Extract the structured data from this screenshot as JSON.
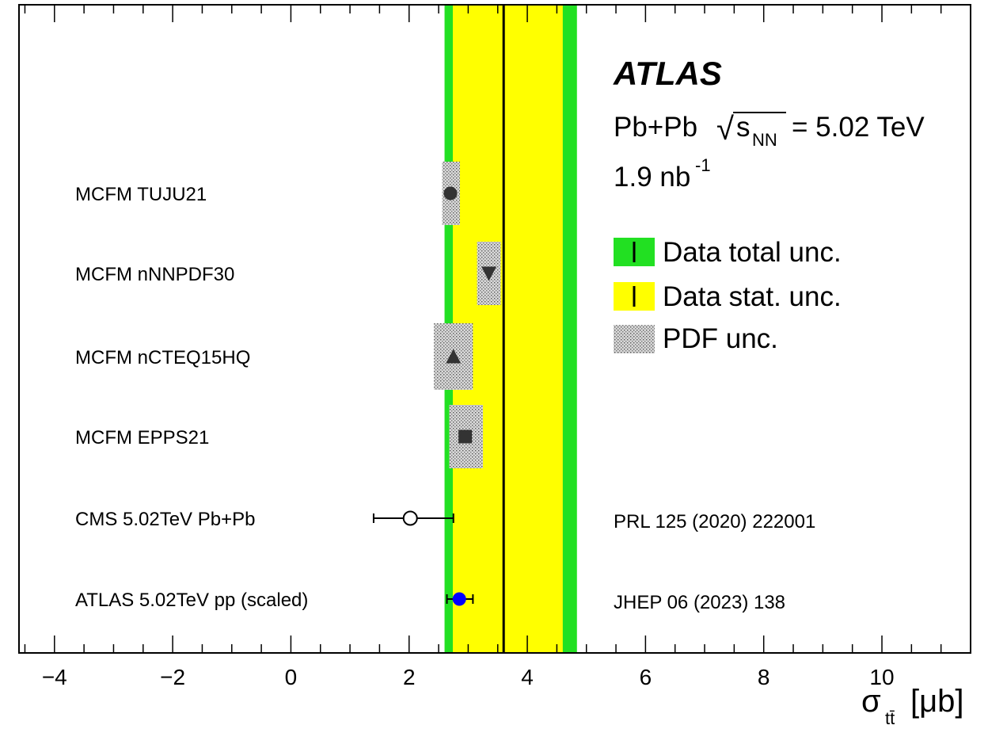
{
  "chart_data": {
    "type": "scatter",
    "title": "ATLAS",
    "subtitle_lines": {
      "collision": "Pb+Pb",
      "sqrt": "√",
      "s_symbol": "s",
      "nn_sub": "NN",
      "energy": "= 5.02 TeV",
      "lumi_value": "1.9 nb",
      "lumi_exp": "-1"
    },
    "xlabel": {
      "sigma": "σ",
      "sub": "tt̄",
      "unit": "[μb]"
    },
    "xlim": [
      -4.6,
      11.5
    ],
    "xticks": [
      -4,
      -2,
      0,
      2,
      4,
      6,
      8,
      10
    ],
    "xtick_labels": [
      "−4",
      "−2",
      "0",
      "2",
      "4",
      "6",
      "8",
      "10"
    ],
    "data_measurement": {
      "central": 3.6,
      "stat_band": [
        2.74,
        4.6
      ],
      "total_band": [
        2.6,
        4.84
      ],
      "line_color": "#000000",
      "stat_color": "#ffff00",
      "total_color": "#22e022"
    },
    "legend": {
      "position": "right",
      "entries": [
        {
          "label": "Data total unc.",
          "style": "total"
        },
        {
          "label": "Data stat. unc.",
          "style": "stat"
        },
        {
          "label": "PDF unc.",
          "style": "pdf"
        }
      ]
    },
    "rows": [
      {
        "label": "MCFM TUJU21",
        "value": 2.7,
        "pdf_unc": [
          2.56,
          2.86
        ],
        "marker": "circle",
        "reference": ""
      },
      {
        "label": "MCFM nNNPDF30",
        "value": 3.35,
        "pdf_unc": [
          3.15,
          3.55
        ],
        "marker": "triangle-down",
        "reference": ""
      },
      {
        "label": "MCFM nCTEQ15HQ",
        "value": 2.75,
        "pdf_unc": [
          2.42,
          3.08
        ],
        "marker": "triangle-up",
        "reference": ""
      },
      {
        "label": "MCFM EPPS21",
        "value": 2.95,
        "pdf_unc": [
          2.68,
          3.25
        ],
        "marker": "square",
        "reference": ""
      },
      {
        "label": "CMS 5.02TeV Pb+Pb",
        "value": 2.02,
        "err": [
          1.4,
          2.75
        ],
        "marker": "open-circle",
        "reference": "PRL 125 (2020) 222001"
      },
      {
        "label": "ATLAS 5.02TeV pp (scaled)",
        "value": 2.85,
        "err": [
          2.64,
          3.08
        ],
        "marker": "blue-circle",
        "reference": "JHEP 06 (2023) 138"
      }
    ],
    "colors": {
      "marker_dark": "#333333",
      "pdf_fill": "#bbbbbb",
      "blue_marker": "#0000ff"
    }
  }
}
